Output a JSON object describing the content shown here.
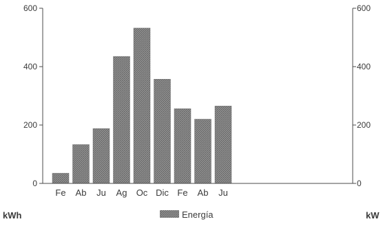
{
  "chart_data": {
    "type": "bar",
    "categories": [
      "Fe",
      "Ab",
      "Ju",
      "Ag",
      "Oc",
      "Dic",
      "Fe",
      "Ab",
      "Ju"
    ],
    "series": [
      {
        "name": "Energía",
        "values": [
          35,
          133,
          188,
          435,
          532,
          357,
          256,
          220,
          265
        ]
      }
    ],
    "ylim": [
      0,
      600
    ],
    "y_ticks": [
      "0",
      "200",
      "400",
      "600"
    ],
    "y2lim": [
      0,
      600
    ],
    "y2_ticks": [
      "0",
      "200",
      "400",
      "600"
    ],
    "ylabel": "kWh",
    "y2label": "kW",
    "legend_position": "bottom-center",
    "grid": false,
    "bar_color": "#8a8a8a",
    "axis_color": "#4a4a4a"
  }
}
